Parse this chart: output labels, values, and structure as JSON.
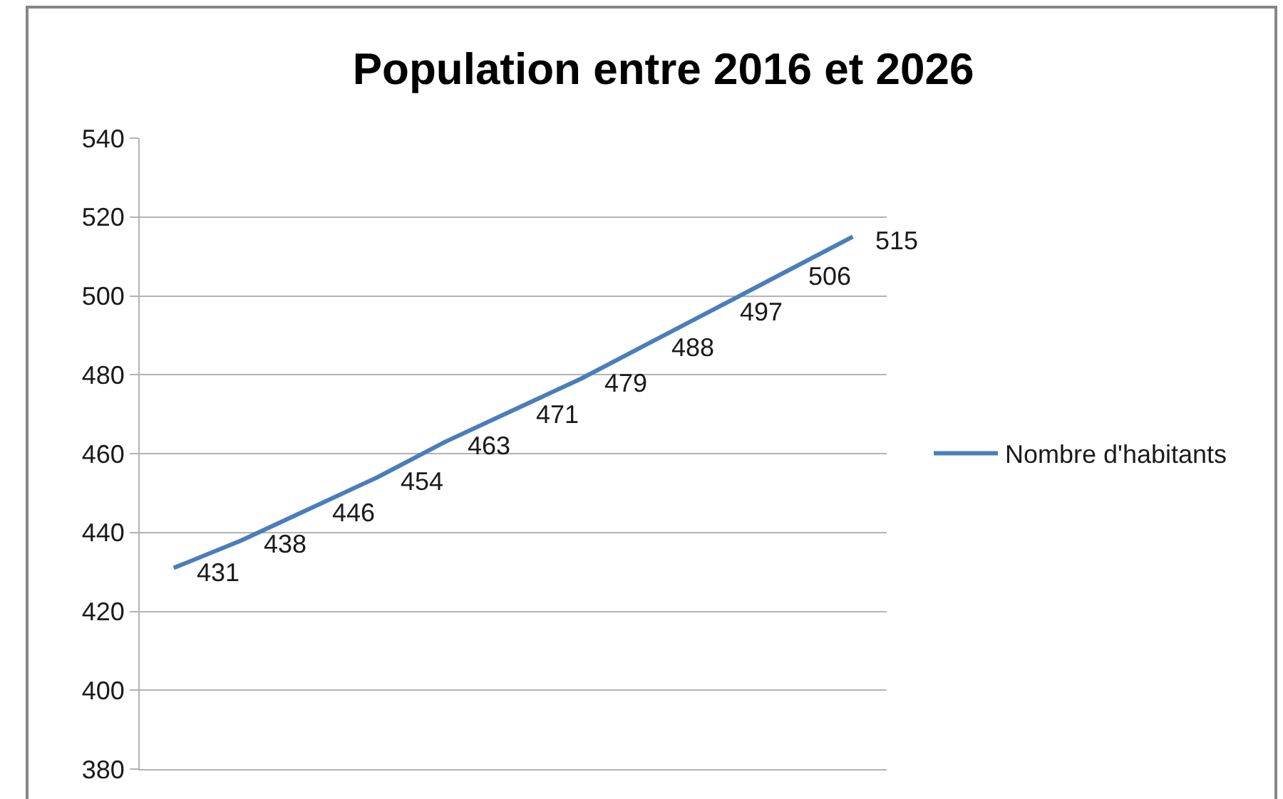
{
  "chart_data": {
    "type": "line",
    "title": "Population entre 2016 et 2026",
    "categories": [
      null,
      null,
      null,
      null,
      null,
      null,
      null,
      null,
      null,
      null,
      null
    ],
    "series": [
      {
        "name": "Nombre d'habitants",
        "color": "#4a7ebb",
        "values": [
          431,
          438,
          446,
          454,
          463,
          471,
          479,
          488,
          497,
          506,
          515
        ]
      }
    ],
    "ylim": [
      380,
      540
    ],
    "yticks": [
      380,
      400,
      420,
      440,
      460,
      480,
      500,
      520,
      540
    ],
    "grid": "y",
    "legend": "right",
    "data_labels": true,
    "tick_labels": "y"
  }
}
